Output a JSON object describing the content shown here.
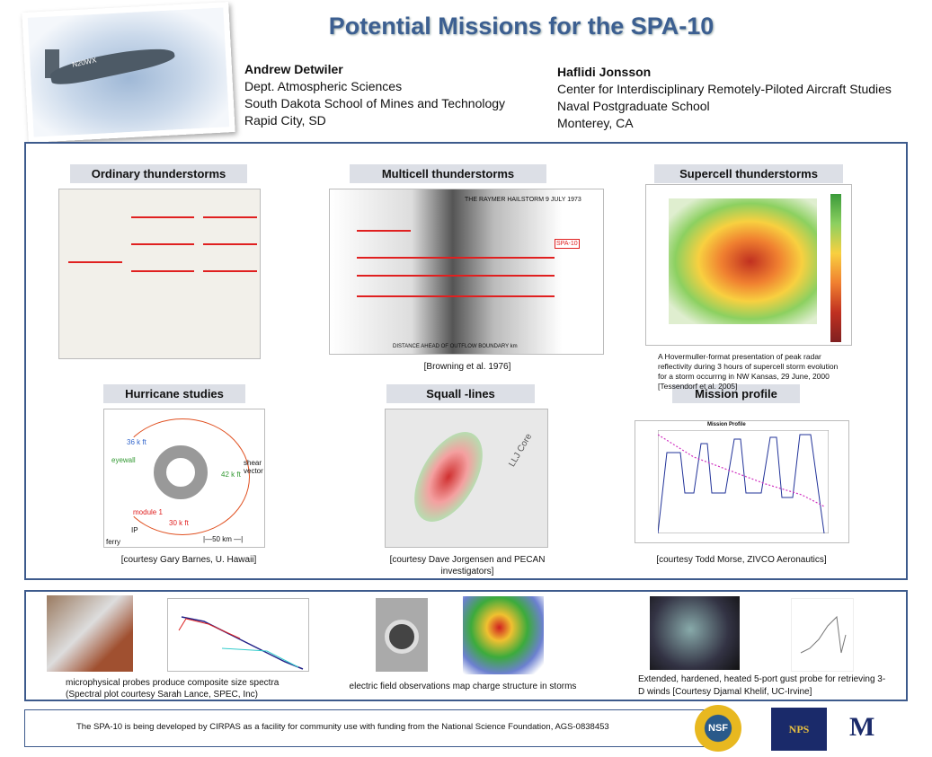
{
  "header": {
    "title": "Potential Missions for the SPA-10",
    "aircraft_registration": "N20WX",
    "author1": {
      "name": "Andrew Detwiler",
      "lines": [
        "Dept. Atmospheric Sciences",
        "South Dakota School of Mines and Technology",
        "Rapid City, SD"
      ]
    },
    "author2": {
      "name": "Haflidi  Jonsson",
      "lines": [
        "Center for Interdisciplinary Remotely-Piloted Aircraft Studies",
        "Naval Postgraduate School",
        "Monterey, CA"
      ]
    }
  },
  "sections": [
    {
      "title": "Ordinary thunderstorms",
      "caption": ""
    },
    {
      "title": "Multicell  thunderstorms",
      "caption": "[Browning et al. 1976]"
    },
    {
      "title": "Supercell  thunderstorms",
      "caption": "A Hovermuller-format presentation of peak radar reflectivity during 3 hours of supercell storm evolution for a storm occurrng in NW Kansas, 29 June, 2000 [Tessendorf et al. 2005]"
    },
    {
      "title": "Hurricane  studies",
      "caption": "[courtesy Gary Barnes, U. Hawaii]"
    },
    {
      "title": "Squall -lines",
      "caption": "[courtesy Dave Jorgensen and PECAN investigators]"
    },
    {
      "title": "Mission profile",
      "caption": "[courtesy Todd Morse, ZIVCO Aeronautics]"
    }
  ],
  "figure_text": {
    "multicell_title": "THE RAYMER HAILSTORM 9 JULY 1973",
    "multicell_xlabel": "DISTANCE AHEAD OF OUTFLOW BOUNDARY  km",
    "spa_label": "SPA-10",
    "hurricane": {
      "eyewall": "eyewall",
      "module": "module 1",
      "alt1": "36 k ft",
      "alt2": "42 k ft",
      "alt3": "30 k ft",
      "shear": "shear vector",
      "ip": "IP",
      "ferry": "ferry",
      "scale": "|—50 km —|"
    },
    "squall_core": "LLJ Core",
    "mission_title": "Mission Profile"
  },
  "instruments": [
    {
      "caption": "microphysical probes produce composite size spectra (Spectral plot courtesy Sarah Lance, SPEC, Inc)"
    },
    {
      "caption": "electric field observations map charge structure in storms"
    },
    {
      "caption": "Extended, hardened, heated 5-port gust probe for retrieving 3-D winds [Courtesy Djamal Khelif, UC-Irvine]"
    }
  ],
  "footer": {
    "text": "The SPA-10 is being developed by CIRPAS as a facility for community use with funding from the National Science Foundation, AGS-0838453",
    "logos": [
      "NSF",
      "NPS",
      "M"
    ]
  },
  "colors": {
    "accent": "#3c5f91",
    "arrow": "#e02020"
  }
}
